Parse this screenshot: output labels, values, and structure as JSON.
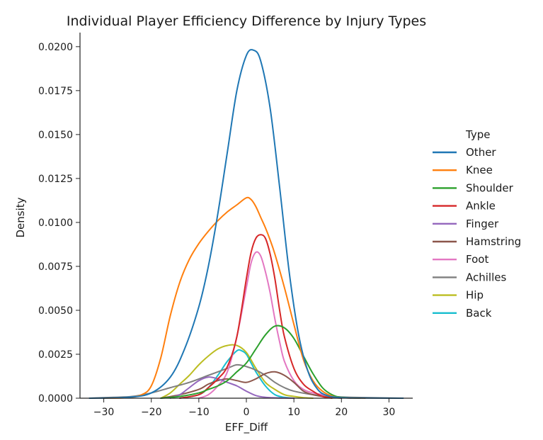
{
  "chart_data": {
    "type": "line",
    "title": "Individual Player Efficiency Difference by Injury Types",
    "xlabel": "EFF_Diff",
    "ylabel": "Density",
    "xlim": [
      -35,
      35
    ],
    "ylim": [
      0,
      0.0208
    ],
    "xticks": [
      -30,
      -20,
      -10,
      0,
      10,
      20,
      30
    ],
    "xtick_labels": [
      "−30",
      "−20",
      "−10",
      "0",
      "10",
      "20",
      "30"
    ],
    "yticks": [
      0,
      0.0025,
      0.005,
      0.0075,
      0.01,
      0.0125,
      0.015,
      0.0175,
      0.02
    ],
    "ytick_labels": [
      "0.0000",
      "0.0025",
      "0.0050",
      "0.0075",
      "0.0100",
      "0.0125",
      "0.0150",
      "0.0175",
      "0.0200"
    ],
    "grid": false,
    "legend_title": "Type",
    "legend_position": "right",
    "series": [
      {
        "name": "Other",
        "color": "#1f77b4",
        "x": [
          -33,
          -25,
          -20,
          -16,
          -13,
          -10,
          -8,
          -6,
          -4,
          -2,
          0,
          1.5,
          3,
          5,
          7,
          9,
          11,
          13,
          15,
          17,
          20,
          25,
          33
        ],
        "values": [
          0,
          5e-05,
          0.0003,
          0.0012,
          0.0028,
          0.0052,
          0.0075,
          0.0105,
          0.014,
          0.0175,
          0.0195,
          0.0198,
          0.0192,
          0.0165,
          0.012,
          0.0072,
          0.0036,
          0.0015,
          0.0005,
          0.00015,
          3e-05,
          1e-05,
          0
        ]
      },
      {
        "name": "Knee",
        "color": "#ff7f0e",
        "x": [
          -30,
          -25,
          -22,
          -20,
          -18,
          -16,
          -14,
          -12,
          -10,
          -8,
          -6,
          -4,
          -2,
          0,
          1,
          2,
          3,
          4,
          5,
          6,
          8,
          10,
          12,
          14,
          16,
          18,
          20,
          25
        ],
        "values": [
          0,
          3e-05,
          0.0002,
          0.0007,
          0.0023,
          0.0047,
          0.0066,
          0.0079,
          0.0088,
          0.0095,
          0.0101,
          0.0106,
          0.011,
          0.0114,
          0.0113,
          0.0109,
          0.0103,
          0.0097,
          0.009,
          0.0082,
          0.0063,
          0.0042,
          0.0022,
          0.001,
          0.0004,
          0.00012,
          3e-05,
          0
        ]
      },
      {
        "name": "Shoulder",
        "color": "#2ca02c",
        "x": [
          -18,
          -14,
          -10,
          -8,
          -6,
          -4,
          -2,
          0,
          2,
          4,
          6,
          8,
          10,
          12,
          14,
          16,
          18,
          20,
          24
        ],
        "values": [
          0,
          0.0001,
          0.0003,
          0.0005,
          0.0007,
          0.001,
          0.0015,
          0.002,
          0.0028,
          0.0036,
          0.0041,
          0.004,
          0.0034,
          0.0024,
          0.0014,
          0.0006,
          0.0002,
          5e-05,
          0
        ]
      },
      {
        "name": "Ankle",
        "color": "#d62728",
        "x": [
          -14,
          -10,
          -8,
          -6,
          -4,
          -2,
          0,
          1,
          2,
          3,
          4,
          5,
          6,
          7,
          8,
          10,
          12,
          14,
          16,
          18
        ],
        "values": [
          0,
          0.0002,
          0.0006,
          0.0011,
          0.0018,
          0.0035,
          0.0068,
          0.0083,
          0.0091,
          0.0093,
          0.0091,
          0.0082,
          0.0068,
          0.005,
          0.0035,
          0.0017,
          0.0008,
          0.0004,
          0.0001,
          0
        ]
      },
      {
        "name": "Finger",
        "color": "#9467bd",
        "x": [
          -16,
          -14,
          -12,
          -10,
          -8,
          -6,
          -4,
          -2,
          0,
          2,
          4,
          6,
          8,
          10
        ],
        "values": [
          0,
          0.0002,
          0.0006,
          0.001,
          0.0012,
          0.0011,
          0.0009,
          0.0007,
          0.0004,
          0.00015,
          5e-05,
          2e-05,
          1e-05,
          0
        ]
      },
      {
        "name": "Hamstring",
        "color": "#8c564b",
        "x": [
          -18,
          -14,
          -10,
          -8,
          -6,
          -4,
          -2,
          0,
          2,
          4,
          6,
          8,
          10,
          12,
          14,
          16,
          18,
          20
        ],
        "values": [
          0,
          0.0002,
          0.0005,
          0.0008,
          0.001,
          0.0011,
          0.001,
          0.0009,
          0.0011,
          0.0014,
          0.0015,
          0.0013,
          0.0009,
          0.0004,
          0.0002,
          0.0001,
          4e-05,
          0
        ]
      },
      {
        "name": "Foot",
        "color": "#e377c2",
        "x": [
          -10,
          -8,
          -6,
          -4,
          -2,
          0,
          1,
          2,
          3,
          4,
          5,
          6,
          7,
          8,
          10,
          12,
          14,
          16,
          18,
          22
        ],
        "values": [
          0,
          0.0002,
          0.0007,
          0.0015,
          0.0035,
          0.0063,
          0.0077,
          0.0083,
          0.0081,
          0.0072,
          0.006,
          0.0045,
          0.0032,
          0.0021,
          0.001,
          0.0005,
          0.0003,
          0.0002,
          0.0001,
          0
        ]
      },
      {
        "name": "Achilles",
        "color": "#7f7f7f",
        "x": [
          -33,
          -28,
          -24,
          -20,
          -16,
          -12,
          -8,
          -4,
          -2,
          0,
          2,
          4,
          6,
          8,
          10,
          14,
          18,
          22,
          28,
          32
        ],
        "values": [
          0,
          5e-05,
          0.0001,
          0.0003,
          0.0006,
          0.0009,
          0.0013,
          0.0017,
          0.0019,
          0.0018,
          0.0016,
          0.0013,
          0.0009,
          0.0006,
          0.0004,
          0.0002,
          0.0001,
          5e-05,
          2e-05,
          0
        ]
      },
      {
        "name": "Hip",
        "color": "#bcbd22",
        "x": [
          -18,
          -16,
          -14,
          -12,
          -10,
          -8,
          -6,
          -4,
          -2,
          0,
          2,
          4,
          6,
          8,
          10,
          12,
          14
        ],
        "values": [
          0,
          0.0003,
          0.0008,
          0.0013,
          0.0019,
          0.0024,
          0.0028,
          0.003,
          0.003,
          0.0026,
          0.0017,
          0.0009,
          0.0005,
          0.0002,
          0.0001,
          3e-05,
          0
        ]
      },
      {
        "name": "Back",
        "color": "#17becf",
        "x": [
          -14,
          -10,
          -8,
          -6,
          -4,
          -2,
          -1,
          0,
          1,
          2,
          4,
          6,
          8,
          10
        ],
        "values": [
          0,
          0.0002,
          0.0006,
          0.0013,
          0.0021,
          0.0027,
          0.0027,
          0.0025,
          0.002,
          0.0015,
          0.0007,
          0.0002,
          5e-05,
          0
        ]
      }
    ]
  }
}
